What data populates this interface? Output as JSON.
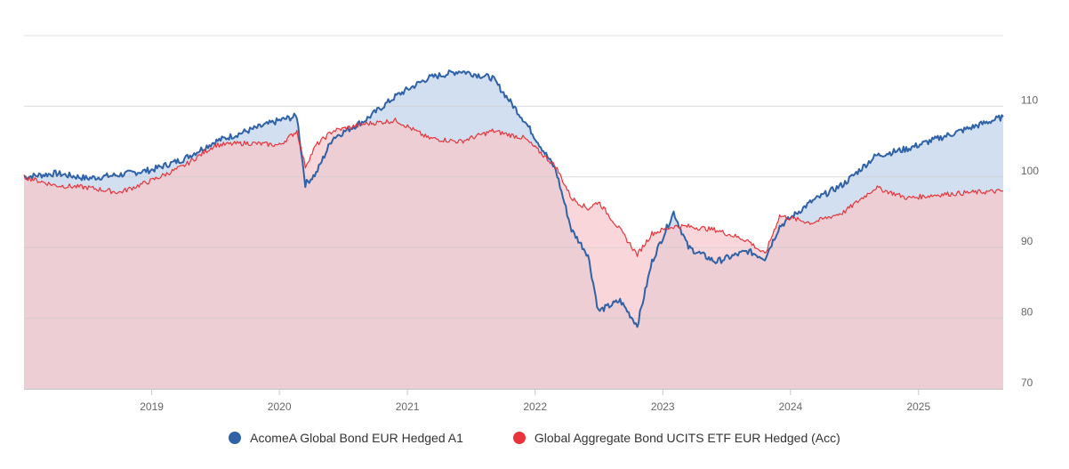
{
  "chart_data": {
    "type": "area",
    "x_ticks": [
      "2019",
      "2020",
      "2021",
      "2022",
      "2023",
      "2024",
      "2025"
    ],
    "y_ticks": [
      70,
      80,
      90,
      100,
      110
    ],
    "ylim": [
      70,
      120
    ],
    "xlim": [
      "2018-01-01",
      "2025-08-31"
    ],
    "grid": "horizontal",
    "legend_position": "bottom-center",
    "series": [
      {
        "name": "AcomeA Global Bond EUR Hedged A1",
        "color": "#2f62a6",
        "fill": "#d2dff0",
        "points": [
          [
            "2018-01-01",
            100.0
          ],
          [
            "2018-04-01",
            100.5
          ],
          [
            "2018-07-01",
            99.8
          ],
          [
            "2018-10-01",
            100.3
          ],
          [
            "2019-01-01",
            101.0
          ],
          [
            "2019-04-01",
            102.5
          ],
          [
            "2019-07-01",
            105.0
          ],
          [
            "2019-10-01",
            106.5
          ],
          [
            "2020-01-01",
            108.0
          ],
          [
            "2020-02-20",
            108.6
          ],
          [
            "2020-03-15",
            99.0
          ],
          [
            "2020-04-15",
            100.5
          ],
          [
            "2020-06-01",
            105.5
          ],
          [
            "2020-09-01",
            108.0
          ],
          [
            "2020-12-01",
            111.5
          ],
          [
            "2021-03-01",
            114.0
          ],
          [
            "2021-06-01",
            115.0
          ],
          [
            "2021-09-01",
            114.0
          ],
          [
            "2021-12-01",
            108.0
          ],
          [
            "2022-03-01",
            101.0
          ],
          [
            "2022-04-15",
            92.5
          ],
          [
            "2022-06-01",
            89.0
          ],
          [
            "2022-07-01",
            81.0
          ],
          [
            "2022-09-01",
            82.5
          ],
          [
            "2022-10-20",
            79.0
          ],
          [
            "2022-12-01",
            88.0
          ],
          [
            "2023-02-01",
            95.0
          ],
          [
            "2023-03-15",
            90.0
          ],
          [
            "2023-06-01",
            88.0
          ],
          [
            "2023-09-01",
            89.5
          ],
          [
            "2023-10-20",
            88.5
          ],
          [
            "2023-12-01",
            93.0
          ],
          [
            "2024-03-01",
            96.5
          ],
          [
            "2024-06-01",
            99.0
          ],
          [
            "2024-09-01",
            103.0
          ],
          [
            "2024-12-01",
            104.0
          ],
          [
            "2025-03-01",
            105.5
          ],
          [
            "2025-06-01",
            107.0
          ],
          [
            "2025-08-31",
            108.5
          ]
        ]
      },
      {
        "name": "Global Aggregate Bond UCITS ETF EUR Hedged (Acc)",
        "color": "#e8343a",
        "fill": "#f6c8cc",
        "points": [
          [
            "2018-01-01",
            100.0
          ],
          [
            "2018-04-01",
            98.8
          ],
          [
            "2018-07-01",
            98.5
          ],
          [
            "2018-10-01",
            97.8
          ],
          [
            "2019-01-01",
            99.5
          ],
          [
            "2019-04-01",
            101.5
          ],
          [
            "2019-07-01",
            104.5
          ],
          [
            "2019-10-01",
            104.8
          ],
          [
            "2020-01-01",
            104.5
          ],
          [
            "2020-02-20",
            106.5
          ],
          [
            "2020-03-15",
            101.5
          ],
          [
            "2020-04-15",
            104.5
          ],
          [
            "2020-06-01",
            106.5
          ],
          [
            "2020-09-01",
            107.5
          ],
          [
            "2020-12-01",
            108.0
          ],
          [
            "2021-03-01",
            105.5
          ],
          [
            "2021-06-01",
            105.0
          ],
          [
            "2021-09-01",
            106.5
          ],
          [
            "2021-12-01",
            105.5
          ],
          [
            "2022-03-01",
            101.5
          ],
          [
            "2022-04-15",
            97.0
          ],
          [
            "2022-06-01",
            95.5
          ],
          [
            "2022-07-01",
            96.5
          ],
          [
            "2022-09-01",
            92.5
          ],
          [
            "2022-10-20",
            89.0
          ],
          [
            "2022-12-01",
            92.0
          ],
          [
            "2023-02-01",
            93.0
          ],
          [
            "2023-03-15",
            93.0
          ],
          [
            "2023-06-01",
            92.5
          ],
          [
            "2023-09-01",
            91.0
          ],
          [
            "2023-10-20",
            89.0
          ],
          [
            "2023-12-01",
            94.5
          ],
          [
            "2024-03-01",
            93.5
          ],
          [
            "2024-06-01",
            95.0
          ],
          [
            "2024-09-01",
            98.5
          ],
          [
            "2024-12-01",
            97.0
          ],
          [
            "2025-03-01",
            97.5
          ],
          [
            "2025-06-01",
            97.8
          ],
          [
            "2025-08-31",
            98.0
          ]
        ]
      }
    ]
  }
}
